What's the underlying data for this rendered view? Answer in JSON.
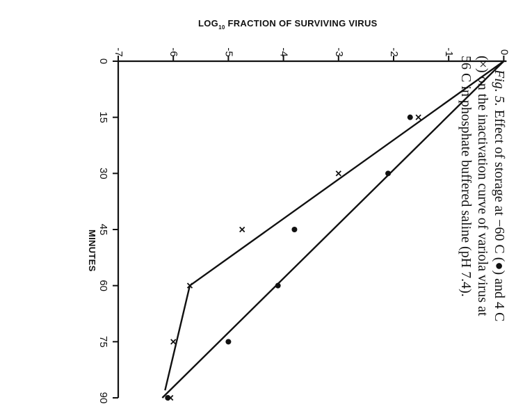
{
  "chart_data": {
    "type": "scatter",
    "orientation": "rotated 90° clockwise (x axis vertical, y axis horizontal)",
    "xlabel": "MINUTES",
    "ylabel_main": "LOG",
    "ylabel_subscript": "10",
    "ylabel_rest": " FRACTION OF SURVIVING VIRUS",
    "xlim": [
      0,
      90
    ],
    "ylim": [
      -7,
      0
    ],
    "x_ticks": [
      "0",
      "15",
      "30",
      "45",
      "60",
      "75",
      "90"
    ],
    "y_ticks": [
      "-7",
      "-6",
      "-5",
      "-4",
      "-3",
      "-2",
      "-1",
      "0"
    ],
    "grid": false,
    "series": [
      {
        "marker": "dot",
        "points": [
          [
            15,
            -1.7
          ],
          [
            30,
            -2.1
          ],
          [
            45,
            -3.8
          ],
          [
            60,
            -4.1
          ],
          [
            75,
            -5.0
          ],
          [
            90,
            -6.1
          ]
        ],
        "fit_line": [
          [
            0,
            0
          ],
          [
            90,
            -6.2
          ]
        ]
      },
      {
        "marker": "cross",
        "points": [
          [
            15,
            -1.55
          ],
          [
            30,
            -3.0
          ],
          [
            45,
            -4.75
          ],
          [
            60,
            -5.7
          ],
          [
            75,
            -6.0
          ],
          [
            90,
            -6.05
          ]
        ],
        "fit_line": [
          [
            0,
            0
          ],
          [
            60,
            -5.7
          ],
          [
            88,
            -6.15
          ]
        ]
      }
    ]
  },
  "caption": {
    "fig_label": "Fig. 5.",
    "line1": " Effect of storage at −60 C (●) and 4 C",
    "line2": "(×) on the inactivation curve of variola virus at",
    "line3": "56 C in phosphate buffered saline (pH 7.4)."
  }
}
